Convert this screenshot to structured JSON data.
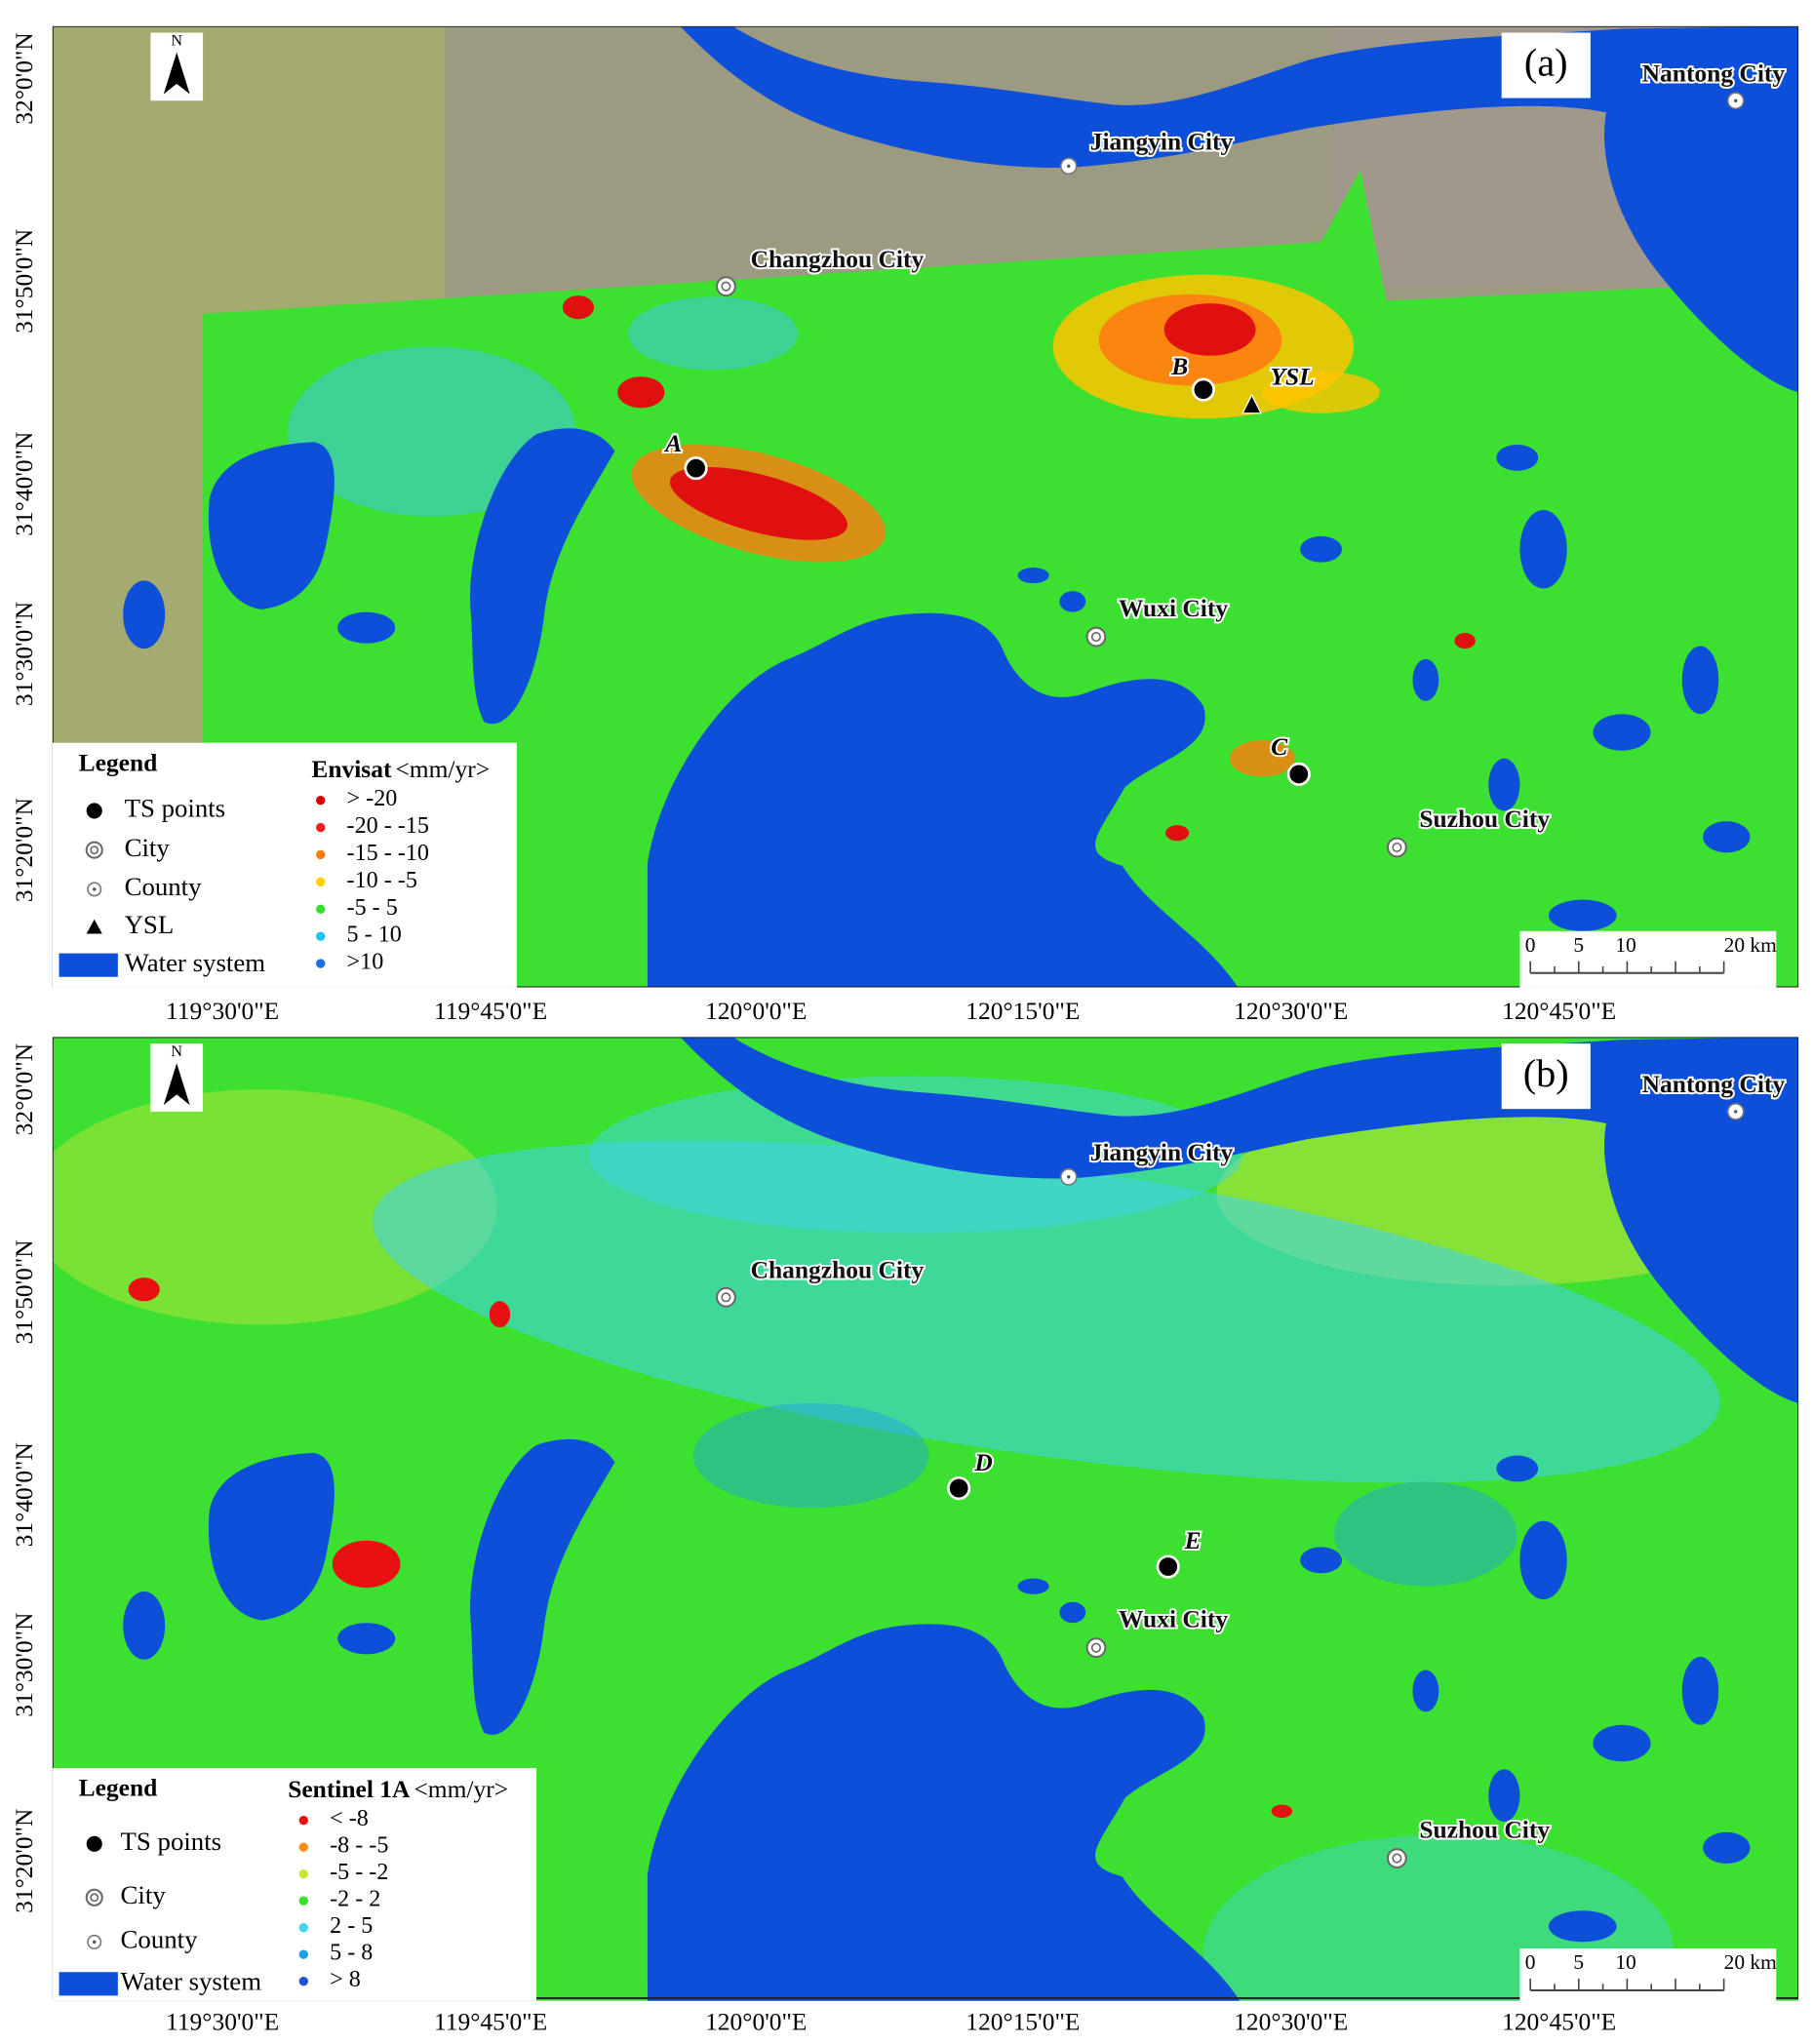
{
  "panels": [
    {
      "label": "(a)",
      "places": [
        {
          "name": "Nantong City",
          "kind": "county"
        },
        {
          "name": "Jiangyin City",
          "kind": "county"
        },
        {
          "name": "Changzhou City",
          "kind": "city"
        },
        {
          "name": "Wuxi City",
          "kind": "city"
        },
        {
          "name": "Suzhou City",
          "kind": "city"
        }
      ],
      "points": [
        "A",
        "B",
        "C"
      ],
      "landmark": "YSL",
      "legend": {
        "title": "Legend",
        "items": [
          "TS points",
          "City",
          "County",
          "YSL",
          "Water system"
        ],
        "scale_title": "Envisat",
        "scale_unit": "<mm/yr>",
        "classes": [
          {
            "label": "> -20",
            "color": "#d40000"
          },
          {
            "label": "-20 - -15",
            "color": "#f41e1e"
          },
          {
            "label": "-15 - -10",
            "color": "#ff7a10"
          },
          {
            "label": "-10 - -5",
            "color": "#ffd200"
          },
          {
            "label": "-5 - 5",
            "color": "#38e02c"
          },
          {
            "label": "5 - 10",
            "color": "#1ec6ee"
          },
          {
            "label": ">10",
            "color": "#1a6fe0"
          }
        ]
      },
      "lon_labels": [
        "119°30'0\"E",
        "119°45'0\"E",
        "120°0'0\"E",
        "120°15'0\"E",
        "120°30'0\"E",
        "120°45'0\"E"
      ],
      "lat_labels": [
        "32°0'0\"N",
        "31°50'0\"N",
        "31°40'0\"N",
        "31°30'0\"N",
        "31°20'0\"N"
      ],
      "north": "N",
      "scale_bar": [
        "0",
        "5",
        "10",
        "20 km"
      ]
    },
    {
      "label": "(b)",
      "places": [
        {
          "name": "Nantong City",
          "kind": "county"
        },
        {
          "name": "Jiangyin City",
          "kind": "county"
        },
        {
          "name": "Changzhou City",
          "kind": "city"
        },
        {
          "name": "Wuxi City",
          "kind": "city"
        },
        {
          "name": "Suzhou City",
          "kind": "city"
        }
      ],
      "points": [
        "D",
        "E"
      ],
      "legend": {
        "title": "Legend",
        "items": [
          "TS points",
          "City",
          "County",
          "Water system"
        ],
        "scale_title": "Sentinel 1A",
        "scale_unit": "<mm/yr>",
        "classes": [
          {
            "label": "< -8",
            "color": "#e81010"
          },
          {
            "label": "-8 - -5",
            "color": "#ff8c10"
          },
          {
            "label": "-5 - -2",
            "color": "#c8e632"
          },
          {
            "label": "-2 - 2",
            "color": "#38e02c"
          },
          {
            "label": "2 - 5",
            "color": "#40d4f0"
          },
          {
            "label": "5 - 8",
            "color": "#1ea0e6"
          },
          {
            "label": "> 8",
            "color": "#1e50dc"
          }
        ]
      },
      "lon_labels": [
        "119°30'0\"E",
        "119°45'0\"E",
        "120°0'0\"E",
        "120°15'0\"E",
        "120°30'0\"E",
        "120°45'0\"E"
      ],
      "lat_labels": [
        "32°0'0\"N",
        "31°50'0\"N",
        "31°40'0\"N",
        "31°30'0\"N",
        "31°20'0\"N"
      ],
      "north": "N",
      "scale_bar": [
        "0",
        "5",
        "10",
        "20 km"
      ]
    }
  ]
}
